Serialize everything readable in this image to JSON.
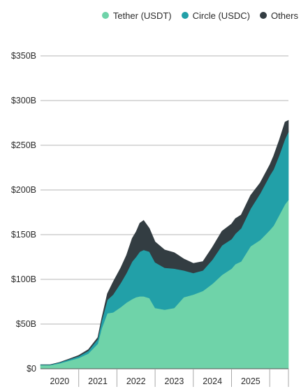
{
  "chart_data": {
    "type": "area",
    "stacked": true,
    "x_ticks": [
      "2020",
      "2021",
      "2022",
      "2023",
      "2024",
      "2025"
    ],
    "y_ticks": [
      "$0",
      "$50B",
      "$100B",
      "$150B",
      "$200B",
      "$250B",
      "$300B",
      "$350B"
    ],
    "ylim": [
      0,
      350
    ],
    "xlim": [
      2019.5,
      2025.99
    ],
    "grid": "horizontal",
    "legend_position": "top-right",
    "x": [
      2019.5,
      2019.75,
      2020.0,
      2020.25,
      2020.5,
      2020.75,
      2021.0,
      2021.1,
      2021.25,
      2021.4,
      2021.6,
      2021.75,
      2021.9,
      2022.0,
      2022.1,
      2022.2,
      2022.35,
      2022.5,
      2022.75,
      2023.0,
      2023.25,
      2023.5,
      2023.75,
      2024.0,
      2024.25,
      2024.5,
      2024.6,
      2024.75,
      2025.0,
      2025.25,
      2025.5,
      2025.6,
      2025.75,
      2025.9,
      2025.99
    ],
    "series": [
      {
        "name": "Tether (USDT)",
        "color": "#6fd3a9",
        "values": [
          4,
          4,
          6,
          9,
          12,
          17,
          28,
          45,
          62,
          63,
          69,
          74,
          78,
          80,
          81,
          81,
          79,
          68,
          66,
          68,
          80,
          83,
          87,
          95,
          105,
          112,
          117,
          120,
          137,
          144,
          155,
          160,
          172,
          184,
          189
        ]
      },
      {
        "name": "Circle (USDC)",
        "color": "#22a0a8",
        "values": [
          0.5,
          0.5,
          1,
          1.5,
          2,
          3,
          5,
          8,
          15,
          20,
          27,
          33,
          42,
          45,
          50,
          52,
          52,
          51,
          47,
          44,
          30,
          24,
          23,
          27,
          33,
          33,
          34,
          37,
          42,
          52,
          61,
          63,
          67,
          73,
          76
        ]
      },
      {
        "name": "Others",
        "color": "#333d42",
        "values": [
          0,
          0,
          0.2,
          0.5,
          1,
          1.5,
          2,
          3,
          7,
          14,
          17,
          20,
          26,
          28,
          32,
          33,
          26,
          23,
          20,
          18,
          13,
          11,
          10,
          14,
          16,
          17,
          17,
          15,
          15,
          12,
          12,
          15,
          17,
          19,
          13
        ]
      }
    ]
  }
}
